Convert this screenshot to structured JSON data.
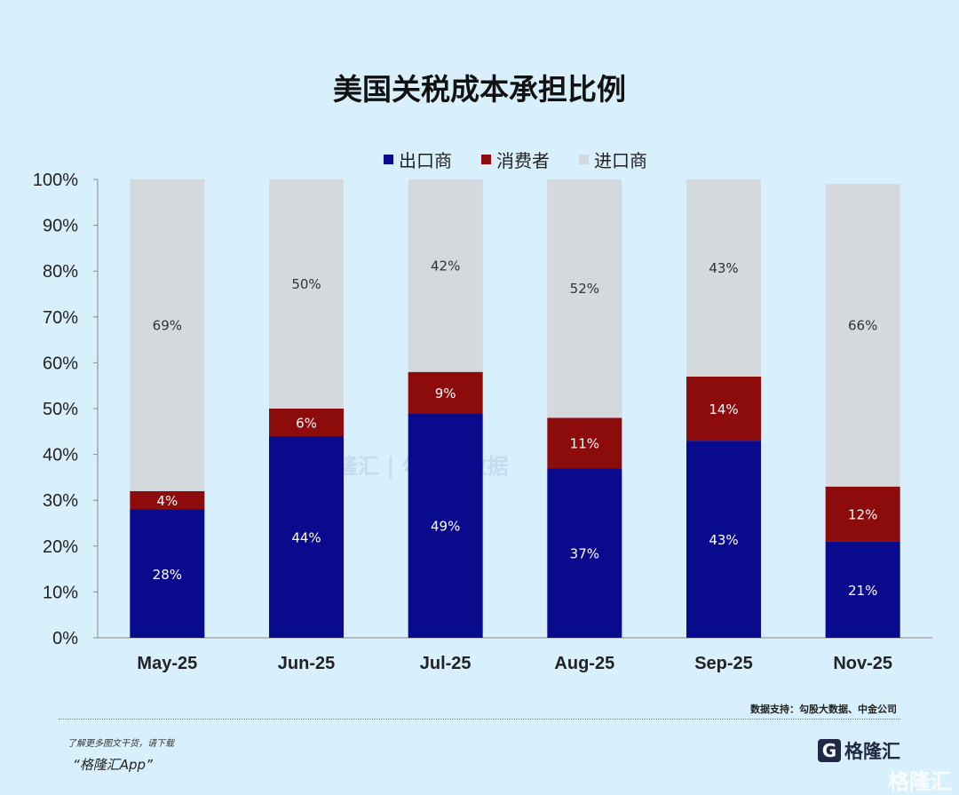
{
  "chart_data": {
    "type": "bar",
    "stacked": true,
    "title": "美国关税成本承担比例",
    "categories": [
      "May-25",
      "Jun-25",
      "Jul-25",
      "Aug-25",
      "Sep-25",
      "Nov-25"
    ],
    "series": [
      {
        "name": "出口商",
        "color": "#0a0a8c",
        "values": [
          28,
          44,
          49,
          37,
          43,
          21
        ]
      },
      {
        "name": "消费者",
        "color": "#8c0b0b",
        "values": [
          4,
          6,
          9,
          11,
          14,
          12
        ]
      },
      {
        "name": "进口商",
        "color": "#d3d9dc",
        "values": [
          69,
          50,
          42,
          52,
          43,
          66
        ]
      }
    ],
    "ylim": [
      0,
      100
    ],
    "yticks": [
      "0%",
      "10%",
      "20%",
      "30%",
      "40%",
      "50%",
      "60%",
      "70%",
      "80%",
      "90%",
      "100%"
    ],
    "legend": "top",
    "grid": false
  },
  "footer": {
    "source": "数据支持：勾股大数据、中金公司",
    "promo_line1": "了解更多图文干货，请下载",
    "promo_line2": "“格隆汇App”",
    "logo_text": "格隆汇",
    "watermark": "格隆汇 | 勾股大数据"
  }
}
